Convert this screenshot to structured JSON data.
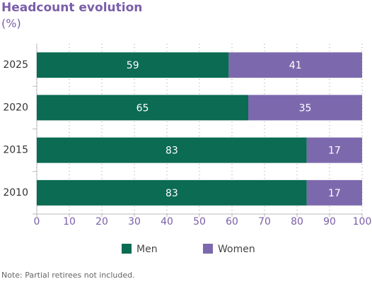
{
  "chart_data": {
    "type": "bar",
    "orientation": "horizontal",
    "stacked": true,
    "title": "Headcount evolution",
    "subtitle": "(%)",
    "note": "Note: Partial retirees not included.",
    "categories": [
      "2025",
      "2020",
      "2015",
      "2010"
    ],
    "series": [
      {
        "name": "Men",
        "color": "#0b6b53",
        "values": [
          59,
          65,
          83,
          83
        ]
      },
      {
        "name": "Women",
        "color": "#7c69ad",
        "values": [
          41,
          35,
          17,
          17
        ]
      }
    ],
    "xlim": [
      0,
      100
    ],
    "xticks": [
      0,
      10,
      20,
      30,
      40,
      50,
      60,
      70,
      80,
      90,
      100
    ],
    "grid": true,
    "legend": "bottom"
  }
}
